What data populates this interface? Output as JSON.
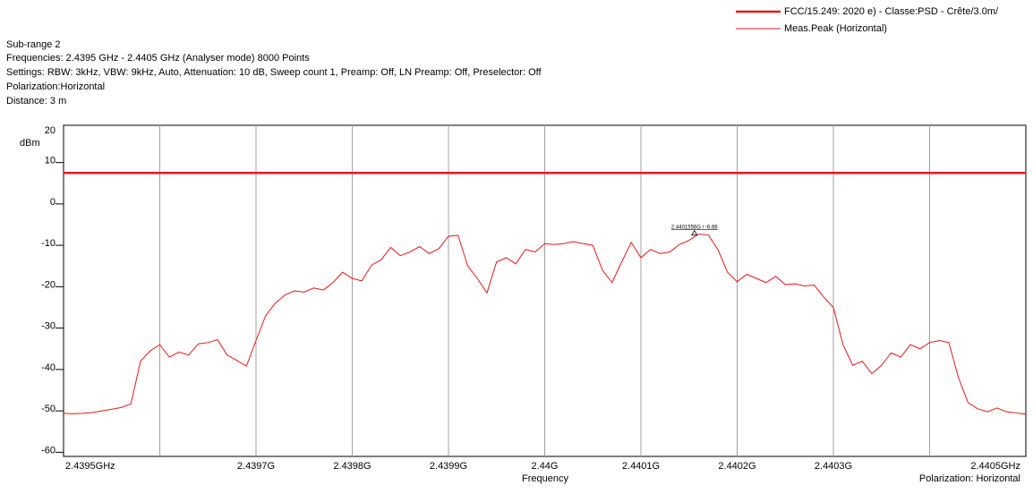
{
  "header": {
    "lines": [
      "Sub-range 2",
      "Frequencies: 2.4395 GHz - 2.4405 GHz (Analyser mode) 8000 Points",
      "Settings: RBW: 3kHz, VBW: 9kHz, Auto, Attenuation: 10 dB, Sweep count 1, Preamp: Off, LN Preamp: Off, Preselector: Off",
      "Polarization:Horizontal",
      "Distance: 3 m"
    ]
  },
  "chart_data": {
    "type": "line",
    "y_label": "dBm",
    "x_label": "Frequency",
    "x_note": "Polarization: Horizontal",
    "xlim": [
      2.4395,
      2.4405
    ],
    "ylim": [
      -61,
      19
    ],
    "xticks": [
      {
        "value": 2.4395,
        "label": "2.4395GHz"
      },
      {
        "value": 2.4396,
        "label": null
      },
      {
        "value": 2.4397,
        "label": "2.4397G"
      },
      {
        "value": 2.4398,
        "label": "2.4398G"
      },
      {
        "value": 2.4399,
        "label": "2.4399G"
      },
      {
        "value": 2.44,
        "label": "2.44G"
      },
      {
        "value": 2.4401,
        "label": "2.4401G"
      },
      {
        "value": 2.4402,
        "label": "2.4402G"
      },
      {
        "value": 2.4403,
        "label": "2.4403G"
      },
      {
        "value": 2.4404,
        "label": null
      },
      {
        "value": 2.4405,
        "label": "2.4405GHz"
      }
    ],
    "yticks": [
      20,
      10,
      0,
      -10,
      -20,
      -30,
      -40,
      -50,
      -60
    ],
    "grid": true,
    "series": [
      {
        "name": "FCC/15.249: 2020 e) - Classe:PSD - Crête/3.0m/",
        "color": "#e31a1a",
        "width": 2.5,
        "x": [
          2.4395,
          2.4405
        ],
        "values": [
          7.5,
          7.5
        ]
      },
      {
        "name": "Meas.Peak (Horizontal)",
        "color": "#e31a1a",
        "width": 1,
        "x": [
          2.4395,
          2.43951,
          2.43952,
          2.43953,
          2.43954,
          2.43955,
          2.43956,
          2.43957,
          2.43958,
          2.43959,
          2.4396,
          2.43961,
          2.43962,
          2.43963,
          2.43964,
          2.43965,
          2.43966,
          2.43967,
          2.43968,
          2.43969,
          2.4397,
          2.43971,
          2.43972,
          2.43973,
          2.43974,
          2.43975,
          2.43976,
          2.43977,
          2.43978,
          2.43979,
          2.4398,
          2.43981,
          2.43982,
          2.43983,
          2.43984,
          2.43985,
          2.43986,
          2.43987,
          2.43988,
          2.43989,
          2.4399,
          2.43991,
          2.43992,
          2.43993,
          2.43994,
          2.43995,
          2.43996,
          2.43997,
          2.43998,
          2.43999,
          2.44,
          2.44001,
          2.44002,
          2.44003,
          2.44004,
          2.44005,
          2.44006,
          2.44007,
          2.44008,
          2.44009,
          2.4401,
          2.44011,
          2.44012,
          2.44013,
          2.44014,
          2.44015,
          2.44016,
          2.44017,
          2.44018,
          2.44019,
          2.4402,
          2.44021,
          2.44022,
          2.44023,
          2.44024,
          2.44025,
          2.44026,
          2.44027,
          2.44028,
          2.44029,
          2.4403,
          2.44031,
          2.44032,
          2.44033,
          2.44034,
          2.44035,
          2.44036,
          2.44037,
          2.44038,
          2.44039,
          2.4404,
          2.44041,
          2.44042,
          2.44043,
          2.44044,
          2.44045,
          2.44046,
          2.44047,
          2.44048,
          2.44049,
          2.4405
        ],
        "values": [
          -50.6,
          -50.7,
          -50.6,
          -50.4,
          -50.0,
          -49.6,
          -49.2,
          -48.3,
          -38,
          -35.5,
          -34.0,
          -37,
          -35.8,
          -36.5,
          -33.8,
          -33.5,
          -32.8,
          -36.5,
          -37.8,
          -39.2,
          -33,
          -27,
          -24,
          -22,
          -21,
          -21.3,
          -20.3,
          -20.8,
          -19,
          -16.5,
          -18,
          -18.6,
          -14.8,
          -13.5,
          -10.5,
          -12.5,
          -11.6,
          -10.3,
          -12,
          -10.8,
          -7.8,
          -7.6,
          -15,
          -18,
          -21.5,
          -14,
          -13,
          -14.5,
          -11,
          -11.6,
          -9.6,
          -9.8,
          -9.6,
          -9.1,
          -9.6,
          -10,
          -16,
          -19,
          -14,
          -9.3,
          -13,
          -11,
          -12,
          -11.6,
          -9.8,
          -8.8,
          -7.3,
          -7.5,
          -11,
          -16.5,
          -18.8,
          -17,
          -18,
          -19,
          -17.5,
          -19.5,
          -19.3,
          -19.8,
          -19.6,
          -22.5,
          -25,
          -34,
          -39,
          -38,
          -41,
          -39,
          -36,
          -37,
          -34,
          -35,
          -33.5,
          -33,
          -33.5,
          -42,
          -48,
          -49.5,
          -50.2,
          -49.3,
          -50.2,
          -50.5,
          -50.8
        ]
      }
    ],
    "marker": {
      "x": 2.4401556,
      "y": -6.66,
      "label": "2.4401556G / -6.66"
    }
  }
}
